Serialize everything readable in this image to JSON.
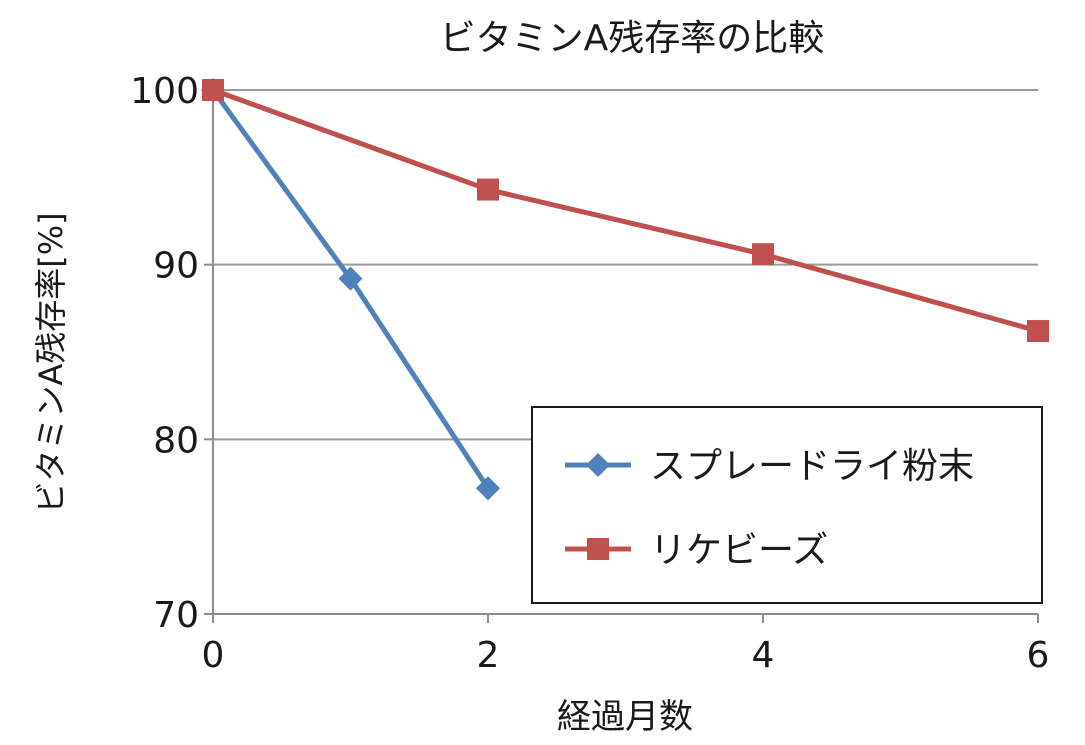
{
  "chart_data": {
    "type": "line",
    "title": "ビタミンA残存率の比較",
    "xlabel": "経過月数",
    "ylabel": "ビタミンA残存率[%]",
    "xlim": [
      0,
      6
    ],
    "ylim": [
      70,
      100
    ],
    "x_ticks": [
      "0",
      "2",
      "4",
      "6"
    ],
    "y_ticks": [
      "70",
      "80",
      "90",
      "100"
    ],
    "grid": "horizontal",
    "legend_position": "lower-right",
    "series": [
      {
        "name": "スプレードライ粉末",
        "color": "#4f81bd",
        "marker": "diamond",
        "x": [
          0,
          1,
          2
        ],
        "y": [
          100,
          89.2,
          77.2
        ]
      },
      {
        "name": "リケビーズ",
        "color": "#c0504d",
        "marker": "square",
        "x": [
          0,
          2,
          4,
          6
        ],
        "y": [
          100,
          94.3,
          90.6,
          86.2
        ]
      }
    ]
  }
}
